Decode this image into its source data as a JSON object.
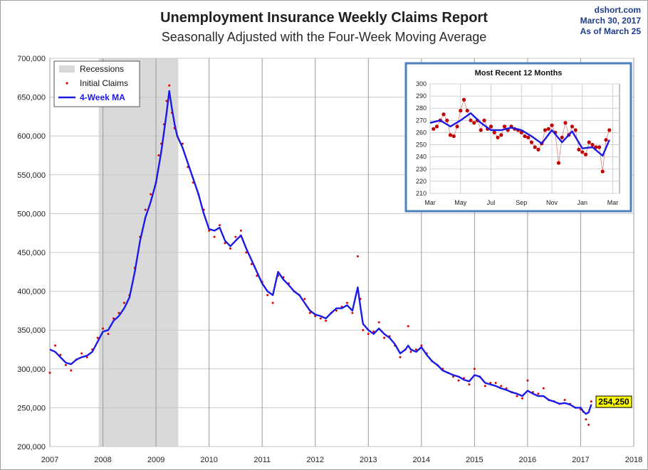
{
  "chart_data": [
    {
      "type": "line",
      "title": "Unemployment Insurance Weekly Claims Report",
      "subtitle": "Seasonally Adjusted with the Four-Week Moving Average",
      "source": [
        "dshort.com",
        "March 30, 2017",
        "As of March 25"
      ],
      "xlim": [
        2007,
        2018
      ],
      "ylim": [
        200000,
        700000
      ],
      "x_ticks": [
        "2007",
        "2008",
        "2009",
        "2010",
        "2011",
        "2012",
        "2013",
        "2014",
        "2015",
        "2016",
        "2017",
        "2018"
      ],
      "y_ticks": [
        "200,000",
        "250,000",
        "300,000",
        "350,000",
        "400,000",
        "450,000",
        "500,000",
        "550,000",
        "600,000",
        "650,000",
        "700,000"
      ],
      "grid": true,
      "legend_position": "top-left",
      "recessions": {
        "label": "Recessions",
        "color": "#d9d9d9",
        "periods": [
          [
            2007.92,
            2009.42
          ]
        ]
      },
      "callout": {
        "label": "254,250",
        "value": 254250,
        "color": "#ffff00"
      },
      "series": [
        {
          "name": "Initial Claims",
          "kind": "points",
          "color": "#e00000",
          "x": [
            2007.0,
            2007.1,
            2007.2,
            2007.3,
            2007.4,
            2007.5,
            2007.6,
            2007.7,
            2007.8,
            2007.9,
            2008.0,
            2008.1,
            2008.2,
            2008.3,
            2008.4,
            2008.5,
            2008.6,
            2008.7,
            2008.8,
            2008.9,
            2009.0,
            2009.05,
            2009.1,
            2009.15,
            2009.2,
            2009.25,
            2009.3,
            2009.35,
            2009.4,
            2009.5,
            2009.6,
            2009.7,
            2009.8,
            2009.9,
            2010.0,
            2010.1,
            2010.2,
            2010.3,
            2010.4,
            2010.5,
            2010.6,
            2010.7,
            2010.8,
            2010.9,
            2011.0,
            2011.1,
            2011.2,
            2011.3,
            2011.4,
            2011.5,
            2011.6,
            2011.7,
            2011.8,
            2011.9,
            2012.0,
            2012.1,
            2012.2,
            2012.3,
            2012.4,
            2012.5,
            2012.6,
            2012.7,
            2012.8,
            2012.85,
            2012.9,
            2013.0,
            2013.1,
            2013.2,
            2013.3,
            2013.4,
            2013.5,
            2013.6,
            2013.7,
            2013.75,
            2013.8,
            2013.9,
            2014.0,
            2014.1,
            2014.2,
            2014.3,
            2014.4,
            2014.5,
            2014.6,
            2014.7,
            2014.8,
            2014.9,
            2015.0,
            2015.1,
            2015.2,
            2015.3,
            2015.4,
            2015.5,
            2015.6,
            2015.7,
            2015.8,
            2015.9,
            2016.0,
            2016.1,
            2016.2,
            2016.3,
            2016.4,
            2016.5,
            2016.6,
            2016.7,
            2016.8,
            2016.9,
            2017.0,
            2017.05,
            2017.1,
            2017.15,
            2017.2
          ],
          "values": [
            295000,
            330000,
            318000,
            305000,
            298000,
            312000,
            320000,
            315000,
            325000,
            340000,
            352000,
            345000,
            365000,
            372000,
            385000,
            395000,
            430000,
            470000,
            505000,
            525000,
            540000,
            575000,
            590000,
            615000,
            645000,
            665000,
            630000,
            610000,
            600000,
            590000,
            560000,
            540000,
            525000,
            505000,
            478000,
            470000,
            485000,
            462000,
            455000,
            470000,
            478000,
            450000,
            435000,
            420000,
            412000,
            395000,
            385000,
            420000,
            418000,
            410000,
            400000,
            395000,
            390000,
            372000,
            368000,
            365000,
            362000,
            372000,
            375000,
            380000,
            385000,
            372000,
            445000,
            390000,
            350000,
            345000,
            348000,
            360000,
            340000,
            342000,
            330000,
            315000,
            325000,
            355000,
            322000,
            325000,
            330000,
            320000,
            310000,
            305000,
            300000,
            295000,
            290000,
            285000,
            288000,
            280000,
            300000,
            290000,
            278000,
            282000,
            282000,
            278000,
            275000,
            270000,
            265000,
            262000,
            285000,
            270000,
            268000,
            275000,
            260000,
            258000,
            255000,
            260000,
            255000,
            250000,
            248000,
            245000,
            235000,
            228000,
            258000
          ]
        },
        {
          "name": "4-Week MA",
          "kind": "line",
          "color": "#1a1ae6",
          "x": [
            2007.0,
            2007.1,
            2007.2,
            2007.3,
            2007.4,
            2007.5,
            2007.6,
            2007.7,
            2007.8,
            2007.9,
            2008.0,
            2008.1,
            2008.2,
            2008.3,
            2008.4,
            2008.5,
            2008.6,
            2008.7,
            2008.8,
            2008.9,
            2009.0,
            2009.05,
            2009.1,
            2009.15,
            2009.2,
            2009.25,
            2009.3,
            2009.35,
            2009.4,
            2009.5,
            2009.6,
            2009.7,
            2009.8,
            2009.9,
            2010.0,
            2010.1,
            2010.2,
            2010.3,
            2010.4,
            2010.5,
            2010.6,
            2010.7,
            2010.8,
            2010.9,
            2011.0,
            2011.1,
            2011.2,
            2011.3,
            2011.4,
            2011.5,
            2011.6,
            2011.7,
            2011.8,
            2011.9,
            2012.0,
            2012.1,
            2012.2,
            2012.3,
            2012.4,
            2012.5,
            2012.6,
            2012.7,
            2012.8,
            2012.85,
            2012.9,
            2013.0,
            2013.1,
            2013.2,
            2013.3,
            2013.4,
            2013.5,
            2013.6,
            2013.7,
            2013.75,
            2013.8,
            2013.9,
            2014.0,
            2014.1,
            2014.2,
            2014.3,
            2014.4,
            2014.5,
            2014.6,
            2014.7,
            2014.8,
            2014.9,
            2015.0,
            2015.1,
            2015.2,
            2015.3,
            2015.4,
            2015.5,
            2015.6,
            2015.7,
            2015.8,
            2015.9,
            2016.0,
            2016.1,
            2016.2,
            2016.3,
            2016.4,
            2016.5,
            2016.6,
            2016.7,
            2016.8,
            2016.9,
            2017.0,
            2017.05,
            2017.1,
            2017.15,
            2017.2
          ],
          "values": [
            325000,
            322000,
            315000,
            308000,
            306000,
            312000,
            315000,
            317000,
            322000,
            335000,
            348000,
            350000,
            362000,
            368000,
            378000,
            392000,
            425000,
            465000,
            495000,
            515000,
            540000,
            560000,
            580000,
            605000,
            630000,
            658000,
            635000,
            615000,
            600000,
            585000,
            565000,
            545000,
            525000,
            500000,
            480000,
            478000,
            482000,
            465000,
            458000,
            465000,
            472000,
            455000,
            440000,
            425000,
            410000,
            400000,
            395000,
            425000,
            415000,
            408000,
            400000,
            395000,
            385000,
            375000,
            370000,
            368000,
            365000,
            372000,
            378000,
            378000,
            382000,
            375000,
            405000,
            380000,
            358000,
            350000,
            345000,
            352000,
            345000,
            340000,
            332000,
            320000,
            325000,
            330000,
            325000,
            322000,
            328000,
            318000,
            310000,
            305000,
            298000,
            295000,
            292000,
            290000,
            286000,
            284000,
            292000,
            290000,
            282000,
            280000,
            278000,
            275000,
            273000,
            270000,
            268000,
            265000,
            272000,
            268000,
            265000,
            265000,
            260000,
            258000,
            255000,
            256000,
            254000,
            250000,
            250000,
            245000,
            242000,
            244000,
            254250
          ]
        }
      ]
    },
    {
      "type": "line",
      "title": "Most Recent 12 Months",
      "x_ticks": [
        "Mar",
        "May",
        "Jul",
        "Sep",
        "Nov",
        "Jan",
        "Mar"
      ],
      "y_ticks": [
        "210",
        "220",
        "230",
        "240",
        "250",
        "260",
        "270",
        "280",
        "290",
        "300"
      ],
      "xlim": [
        0,
        56
      ],
      "ylim": [
        210,
        300
      ],
      "grid": true,
      "series": [
        {
          "name": "Initial Claims",
          "kind": "points",
          "color": "#c00000",
          "x": [
            1,
            2,
            3,
            4,
            5,
            6,
            7,
            8,
            9,
            10,
            11,
            12,
            13,
            14,
            15,
            16,
            17,
            18,
            19,
            20,
            21,
            22,
            23,
            24,
            25,
            26,
            27,
            28,
            29,
            30,
            31,
            32,
            33,
            34,
            35,
            36,
            37,
            38,
            39,
            40,
            41,
            42,
            43,
            44,
            45,
            46,
            47,
            48,
            49,
            50,
            51,
            52,
            53
          ],
          "values": [
            263,
            265,
            270,
            275,
            270,
            258,
            257,
            265,
            278,
            287,
            278,
            270,
            268,
            270,
            262,
            270,
            263,
            265,
            260,
            256,
            258,
            265,
            262,
            265,
            263,
            262,
            260,
            257,
            256,
            252,
            248,
            246,
            251,
            262,
            263,
            266,
            260,
            235,
            256,
            268,
            258,
            265,
            262,
            246,
            244,
            242,
            252,
            250,
            248,
            248,
            228,
            254,
            262
          ]
        },
        {
          "name": "4-Week MA",
          "kind": "line",
          "color": "#1a1ae6",
          "x": [
            0,
            3,
            6,
            9,
            12,
            15,
            18,
            21,
            24,
            27,
            30,
            33,
            36,
            39,
            42,
            45,
            48,
            51,
            53
          ],
          "values": [
            268,
            270,
            265,
            270,
            276,
            268,
            262,
            262,
            264,
            262,
            257,
            251,
            262,
            252,
            261,
            247,
            248,
            241,
            254
          ]
        }
      ]
    }
  ]
}
